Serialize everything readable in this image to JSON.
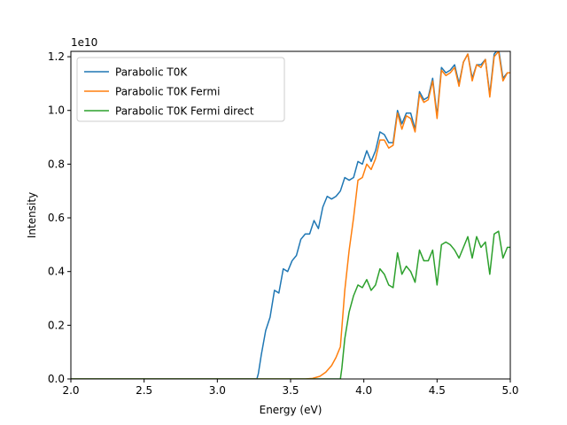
{
  "chart_data": {
    "type": "line",
    "xlabel": "Energy (eV)",
    "ylabel": "Intensity",
    "y_multiplier_label": "1e10",
    "xlim": [
      2.0,
      5.0
    ],
    "ylim": [
      0,
      1.22
    ],
    "xticks": [
      "2.0",
      "2.5",
      "3.0",
      "3.5",
      "4.0",
      "4.5",
      "5.0"
    ],
    "yticks": [
      "0.0",
      "0.2",
      "0.4",
      "0.6",
      "0.8",
      "1.0",
      "1.2"
    ],
    "legend_position": "top-left",
    "grid": false,
    "series": [
      {
        "name": "Parabolic T0K",
        "color": "#1f77b4",
        "points": [
          [
            2.0,
            0
          ],
          [
            3.27,
            0
          ],
          [
            3.28,
            0.02
          ],
          [
            3.3,
            0.09
          ],
          [
            3.33,
            0.18
          ],
          [
            3.36,
            0.23
          ],
          [
            3.39,
            0.33
          ],
          [
            3.42,
            0.32
          ],
          [
            3.45,
            0.41
          ],
          [
            3.48,
            0.4
          ],
          [
            3.51,
            0.44
          ],
          [
            3.54,
            0.46
          ],
          [
            3.57,
            0.52
          ],
          [
            3.6,
            0.54
          ],
          [
            3.63,
            0.54
          ],
          [
            3.66,
            0.59
          ],
          [
            3.69,
            0.56
          ],
          [
            3.72,
            0.64
          ],
          [
            3.75,
            0.68
          ],
          [
            3.78,
            0.67
          ],
          [
            3.81,
            0.68
          ],
          [
            3.84,
            0.7
          ],
          [
            3.87,
            0.75
          ],
          [
            3.9,
            0.74
          ],
          [
            3.93,
            0.75
          ],
          [
            3.96,
            0.81
          ],
          [
            3.99,
            0.8
          ],
          [
            4.02,
            0.85
          ],
          [
            4.05,
            0.81
          ],
          [
            4.08,
            0.85
          ],
          [
            4.11,
            0.92
          ],
          [
            4.14,
            0.91
          ],
          [
            4.17,
            0.88
          ],
          [
            4.2,
            0.88
          ],
          [
            4.23,
            1.0
          ],
          [
            4.26,
            0.95
          ],
          [
            4.29,
            0.99
          ],
          [
            4.32,
            0.99
          ],
          [
            4.35,
            0.93
          ],
          [
            4.38,
            1.07
          ],
          [
            4.41,
            1.04
          ],
          [
            4.44,
            1.05
          ],
          [
            4.47,
            1.12
          ],
          [
            4.5,
            0.98
          ],
          [
            4.53,
            1.16
          ],
          [
            4.56,
            1.14
          ],
          [
            4.59,
            1.15
          ],
          [
            4.62,
            1.17
          ],
          [
            4.65,
            1.1
          ],
          [
            4.68,
            1.18
          ],
          [
            4.71,
            1.21
          ],
          [
            4.74,
            1.12
          ],
          [
            4.77,
            1.17
          ],
          [
            4.8,
            1.17
          ],
          [
            4.83,
            1.19
          ],
          [
            4.86,
            1.06
          ],
          [
            4.89,
            1.21
          ],
          [
            4.92,
            1.23
          ],
          [
            4.95,
            1.12
          ],
          [
            4.98,
            1.14
          ],
          [
            5.0,
            1.14
          ]
        ]
      },
      {
        "name": "Parabolic T0K Fermi",
        "color": "#ff7f0e",
        "points": [
          [
            2.0,
            0
          ],
          [
            3.6,
            0
          ],
          [
            3.65,
            0.002
          ],
          [
            3.7,
            0.01
          ],
          [
            3.74,
            0.025
          ],
          [
            3.78,
            0.05
          ],
          [
            3.81,
            0.08
          ],
          [
            3.84,
            0.12
          ],
          [
            3.87,
            0.33
          ],
          [
            3.9,
            0.48
          ],
          [
            3.93,
            0.6
          ],
          [
            3.96,
            0.74
          ],
          [
            3.99,
            0.75
          ],
          [
            4.02,
            0.8
          ],
          [
            4.05,
            0.78
          ],
          [
            4.08,
            0.82
          ],
          [
            4.11,
            0.89
          ],
          [
            4.14,
            0.89
          ],
          [
            4.17,
            0.86
          ],
          [
            4.2,
            0.87
          ],
          [
            4.23,
            0.99
          ],
          [
            4.26,
            0.93
          ],
          [
            4.29,
            0.98
          ],
          [
            4.32,
            0.97
          ],
          [
            4.35,
            0.92
          ],
          [
            4.38,
            1.06
          ],
          [
            4.41,
            1.03
          ],
          [
            4.44,
            1.04
          ],
          [
            4.47,
            1.11
          ],
          [
            4.5,
            0.97
          ],
          [
            4.53,
            1.15
          ],
          [
            4.56,
            1.13
          ],
          [
            4.59,
            1.14
          ],
          [
            4.62,
            1.16
          ],
          [
            4.65,
            1.09
          ],
          [
            4.68,
            1.18
          ],
          [
            4.71,
            1.21
          ],
          [
            4.74,
            1.11
          ],
          [
            4.77,
            1.17
          ],
          [
            4.8,
            1.16
          ],
          [
            4.83,
            1.19
          ],
          [
            4.86,
            1.05
          ],
          [
            4.89,
            1.2
          ],
          [
            4.92,
            1.22
          ],
          [
            4.95,
            1.11
          ],
          [
            4.98,
            1.14
          ],
          [
            5.0,
            1.14
          ]
        ]
      },
      {
        "name": "Parabolic T0K Fermi direct",
        "color": "#2ca02c",
        "points": [
          [
            2.0,
            0
          ],
          [
            3.84,
            0
          ],
          [
            3.85,
            0.04
          ],
          [
            3.87,
            0.15
          ],
          [
            3.9,
            0.25
          ],
          [
            3.93,
            0.31
          ],
          [
            3.96,
            0.35
          ],
          [
            3.99,
            0.34
          ],
          [
            4.02,
            0.37
          ],
          [
            4.05,
            0.33
          ],
          [
            4.08,
            0.35
          ],
          [
            4.11,
            0.41
          ],
          [
            4.14,
            0.39
          ],
          [
            4.17,
            0.35
          ],
          [
            4.2,
            0.34
          ],
          [
            4.23,
            0.47
          ],
          [
            4.26,
            0.39
          ],
          [
            4.29,
            0.42
          ],
          [
            4.32,
            0.4
          ],
          [
            4.35,
            0.36
          ],
          [
            4.38,
            0.48
          ],
          [
            4.41,
            0.44
          ],
          [
            4.44,
            0.44
          ],
          [
            4.47,
            0.48
          ],
          [
            4.5,
            0.35
          ],
          [
            4.53,
            0.5
          ],
          [
            4.56,
            0.51
          ],
          [
            4.59,
            0.5
          ],
          [
            4.62,
            0.48
          ],
          [
            4.65,
            0.45
          ],
          [
            4.68,
            0.49
          ],
          [
            4.71,
            0.53
          ],
          [
            4.74,
            0.45
          ],
          [
            4.77,
            0.53
          ],
          [
            4.8,
            0.49
          ],
          [
            4.83,
            0.51
          ],
          [
            4.86,
            0.39
          ],
          [
            4.89,
            0.54
          ],
          [
            4.92,
            0.55
          ],
          [
            4.95,
            0.45
          ],
          [
            4.98,
            0.49
          ],
          [
            5.0,
            0.49
          ]
        ]
      }
    ]
  }
}
